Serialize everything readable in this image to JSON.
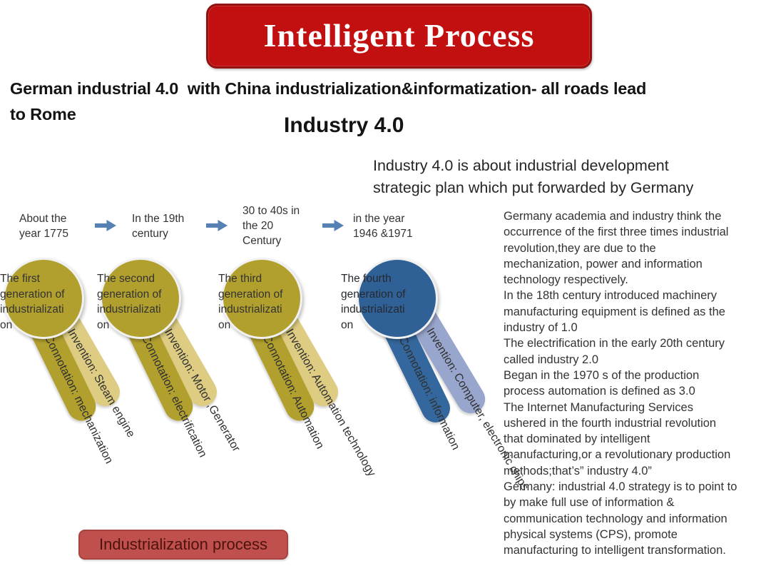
{
  "banner": {
    "label": "Intelligent Process",
    "bg_color": "#c20f10",
    "text_color": "#ffffff"
  },
  "heading": {
    "text": "German industrial 4.0  with China industrialization&informatization- all roads lead\nto Rome"
  },
  "section_title": {
    "text": "Industry 4.0"
  },
  "subtitle": {
    "text": "Industry 4.0 is about industrial development\nstrategic plan which put forwarded by Germany"
  },
  "timeline": {
    "arrow_color": "#5581b5",
    "items": [
      {
        "label": "About the\nyear 1775"
      },
      {
        "label": "In the 19th\ncentury"
      },
      {
        "label": "30 to 40s in\nthe 20\nCentury"
      },
      {
        "label": "in the year\n1946 &1971"
      }
    ]
  },
  "generations": [
    {
      "label": "The first\ngeneration of\nindustrializati\non",
      "invention": "Invention: Steam engine",
      "connotation": "Connotation: mechanization",
      "colors": {
        "circle": "#b2a02e",
        "invention_ribbon": "#ddcc82",
        "connotation_ribbon": "#b2a02e"
      }
    },
    {
      "label": "The second\ngeneration of\nindustrializati\non",
      "invention": "Invention: Motor ,Generator",
      "connotation": "Connotation: electrification",
      "colors": {
        "circle": "#b2a02e",
        "invention_ribbon": "#ddcc82",
        "connotation_ribbon": "#b2a02e"
      }
    },
    {
      "label": "The third\ngeneration of\nindustrializati\non",
      "invention": "Invention: Automation technology",
      "connotation": "Connotation: Automation",
      "colors": {
        "circle": "#b2a02e",
        "invention_ribbon": "#ddcc82",
        "connotation_ribbon": "#b2a02e"
      }
    },
    {
      "label": "The fourth\ngeneration of\nindustrializati\non",
      "invention": "Invention: Computer, electronic chips",
      "connotation": "Connotation: information",
      "colors": {
        "circle": "#2f6197",
        "invention_ribbon": "#98a6cd",
        "connotation_ribbon": "#33679d"
      }
    }
  ],
  "description": {
    "text": "Germany academia and industry think the\noccurrence of the first three times industrial\nrevolution,they are due to the\nmechanization, power and information\ntechnology respectively.\nIn the 18th century introduced machinery\nmanufacturing equipment is defined as the\nindustry of 1.0\nThe electrification in the early 20th century\ncalled industry 2.0\nBegan in the 1970 s of the production\nprocess automation is defined as 3.0\nThe Internet Manufacturing Services\nushered in the fourth industrial revolution\nthat dominated by intelligent\nmanufacturing,or a revolutionary production\nmethods;that’s” industry 4.0”\nGermany: industrial 4.0 strategy is to point to\nby make full use of information &\ncommunication technology and information\nphysical systems (CPS), promote\nmanufacturing to intelligent transformation.",
    "text_color": "#333333"
  },
  "footer_box": {
    "label": "Industrialization process",
    "bg_color": "#c0504d",
    "text_color": "#4e130c"
  }
}
